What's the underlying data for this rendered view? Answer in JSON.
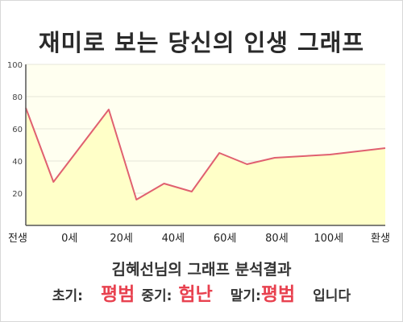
{
  "chart_data": {
    "type": "area",
    "title": "재미로 보는 당신의 인생 그래프",
    "subtitle": "김혜선님의 그래프 분석결과",
    "x_tick_labels": [
      "전생",
      "0세",
      "20세",
      "40세",
      "60세",
      "80세",
      "100세",
      "환생"
    ],
    "y_ticks": [
      20,
      40,
      60,
      80,
      100
    ],
    "ylim": [
      0,
      100
    ],
    "x": [
      -10,
      0,
      20,
      30,
      40,
      50,
      60,
      70,
      80,
      100,
      120
    ],
    "values": [
      73,
      27,
      72,
      16,
      26,
      21,
      45,
      38,
      42,
      44,
      48
    ],
    "xlim": [
      -10,
      120
    ],
    "grid": true,
    "line_color": "#e06070",
    "fill_color": "#ffffc8",
    "plot_background": "#fffff0"
  },
  "result": {
    "early_label": "초기:",
    "early_value": "평범",
    "mid_label": "중기:",
    "mid_value": "험난",
    "late_label": "말기:",
    "late_value": "평범",
    "suffix": "입니다",
    "highlight_color": "#e8414f"
  }
}
